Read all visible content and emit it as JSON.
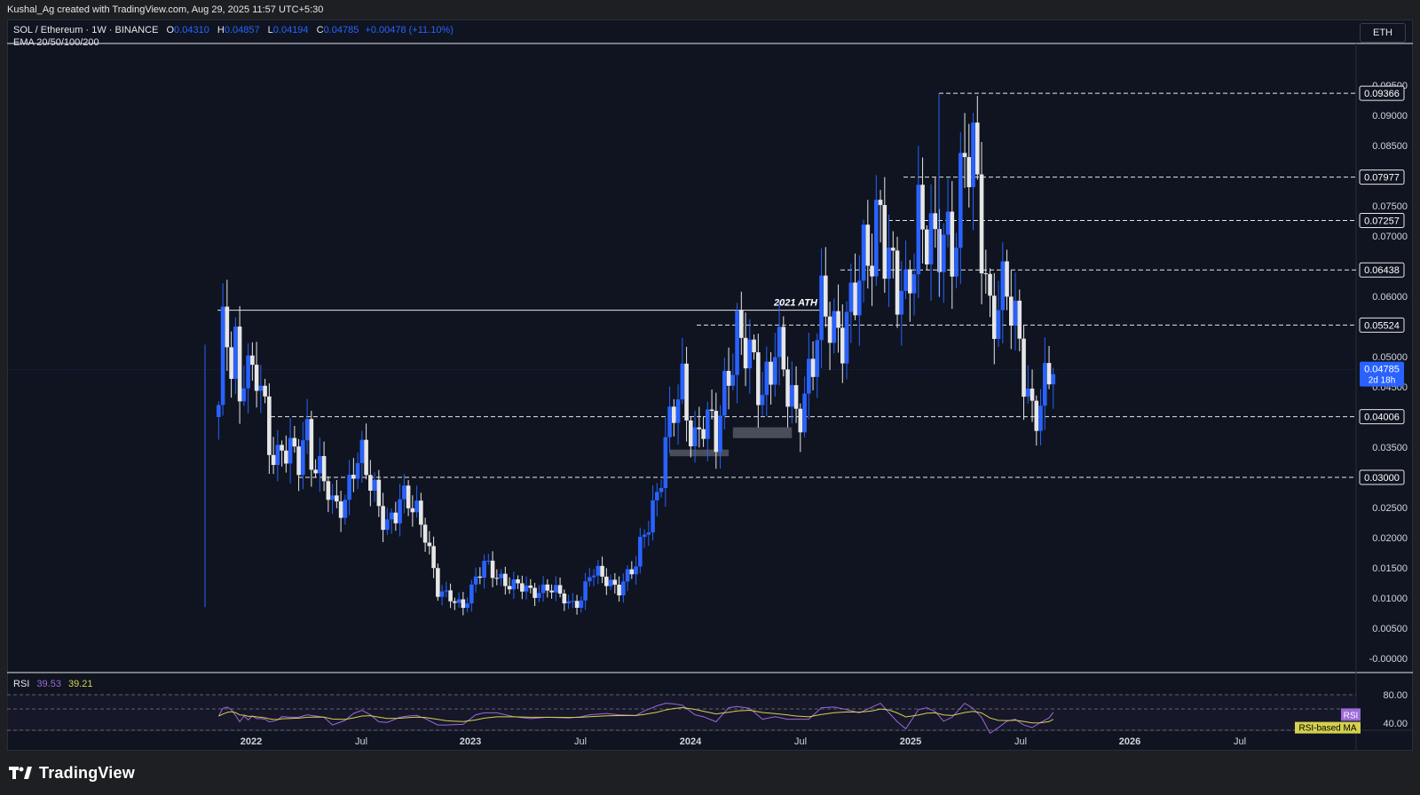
{
  "header": {
    "attribution": "Kushal_Ag created with TradingView.com, Aug 29, 2025 11:57 UTC+5:30"
  },
  "legend": {
    "symbol": "SOL / Ethereum · 1W · BINANCE",
    "open_label": "O",
    "open": "0.04310",
    "high_label": "H",
    "high": "0.04857",
    "low_label": "L",
    "low": "0.04194",
    "close_label": "C",
    "close": "0.04785",
    "change": "+0.00478 (+11.10%)",
    "indicator": "EMA 20/50/100/200"
  },
  "currency_button": "ETH",
  "rsi": {
    "label": "RSI",
    "value": "39.53",
    "ma_value": "39.21",
    "tag_rsi": "RSI",
    "tag_ma": "RSI-based MA",
    "ticks": [
      "80.00",
      "40.00"
    ]
  },
  "footer": {
    "brand": "TradingView"
  },
  "colors": {
    "background": "#0f1420",
    "up": "#2962ff",
    "down": "#e6e6e6",
    "rsi_line": "#9c6ad8",
    "rsi_ma": "#d4d14f"
  },
  "chart_data": {
    "type": "candlestick",
    "title": "SOL / Ethereum · 1W · BINANCE",
    "y_ticks": [
      "0.09500",
      "0.09000",
      "0.08500",
      "0.07500",
      "0.07000",
      "0.06000",
      "0.05000",
      "0.04500",
      "0.03500",
      "0.02500",
      "0.02000",
      "0.01500",
      "0.01000",
      "0.00500",
      "-0.00000"
    ],
    "x_ticks": [
      "2022",
      "Jul",
      "2023",
      "Jul",
      "2024",
      "Jul",
      "2025",
      "Jul",
      "2026",
      "Jul"
    ],
    "ylim": [
      0,
      0.1
    ],
    "levels": [
      {
        "value": 0.09366,
        "label": "0.09366"
      },
      {
        "value": 0.07977,
        "label": "0.07977"
      },
      {
        "value": 0.07257,
        "label": "0.07257"
      },
      {
        "value": 0.06438,
        "label": "0.06438"
      },
      {
        "value": 0.05524,
        "label": "0.05524"
      },
      {
        "value": 0.04006,
        "label": "0.04006"
      },
      {
        "value": 0.03,
        "label": "0.03000"
      }
    ],
    "ath": {
      "value": 0.0577,
      "label": "2021 ATH"
    },
    "last_price": {
      "value": 0.04785,
      "label": "0.04785",
      "countdown": "2d 18h"
    },
    "demand_zones": [
      {
        "date_start": "2023-11-27",
        "date_end": "2024-03-04",
        "low": 0.0335,
        "high": 0.0346
      },
      {
        "date_start": "2024-03-11",
        "date_end": "2024-06-17",
        "low": 0.0365,
        "high": 0.0383
      }
    ],
    "series": [
      {
        "name": "SOL/ETH weekly close",
        "points": [
          [
            "2021-11-08",
            0.04
          ],
          [
            "2021-11-15",
            0.052
          ],
          [
            "2021-11-22",
            0.054
          ],
          [
            "2021-11-29",
            0.05
          ],
          [
            "2021-12-06",
            0.053
          ],
          [
            "2021-12-13",
            0.045
          ],
          [
            "2021-12-20",
            0.05
          ],
          [
            "2021-12-27",
            0.047
          ],
          [
            "2022-01-03",
            0.045
          ],
          [
            "2022-01-10",
            0.046
          ],
          [
            "2022-01-17",
            0.043
          ],
          [
            "2022-01-24",
            0.04
          ],
          [
            "2022-01-31",
            0.037
          ],
          [
            "2022-02-07",
            0.035
          ],
          [
            "2022-02-14",
            0.034
          ],
          [
            "2022-02-21",
            0.036
          ],
          [
            "2022-03-07",
            0.033
          ],
          [
            "2022-03-21",
            0.032
          ],
          [
            "2022-04-04",
            0.038
          ],
          [
            "2022-04-18",
            0.033
          ],
          [
            "2022-05-02",
            0.03
          ],
          [
            "2022-05-16",
            0.024
          ],
          [
            "2022-06-06",
            0.026
          ],
          [
            "2022-06-20",
            0.034
          ],
          [
            "2022-07-04",
            0.033
          ],
          [
            "2022-07-18",
            0.028
          ],
          [
            "2022-08-01",
            0.025
          ],
          [
            "2022-08-15",
            0.023
          ],
          [
            "2022-09-05",
            0.026
          ],
          [
            "2022-09-19",
            0.025
          ],
          [
            "2022-10-03",
            0.024
          ],
          [
            "2022-10-17",
            0.022
          ],
          [
            "2022-11-07",
            0.011
          ],
          [
            "2022-11-21",
            0.01
          ],
          [
            "2022-12-19",
            0.009
          ],
          [
            "2023-01-09",
            0.013
          ],
          [
            "2023-01-23",
            0.015
          ],
          [
            "2023-02-13",
            0.014
          ],
          [
            "2023-03-13",
            0.012
          ],
          [
            "2023-04-10",
            0.011
          ],
          [
            "2023-05-08",
            0.012
          ],
          [
            "2023-06-12",
            0.009
          ],
          [
            "2023-07-03",
            0.01
          ],
          [
            "2023-07-17",
            0.014
          ],
          [
            "2023-08-14",
            0.013
          ],
          [
            "2023-09-04",
            0.012
          ],
          [
            "2023-10-02",
            0.015
          ],
          [
            "2023-10-16",
            0.021
          ],
          [
            "2023-11-06",
            0.028
          ],
          [
            "2023-11-20",
            0.035
          ],
          [
            "2023-12-04",
            0.04
          ],
          [
            "2023-12-18",
            0.045
          ],
          [
            "2024-01-08",
            0.037
          ],
          [
            "2024-01-22",
            0.039
          ],
          [
            "2024-02-12",
            0.036
          ],
          [
            "2024-03-04",
            0.05
          ],
          [
            "2024-03-18",
            0.054
          ],
          [
            "2024-04-08",
            0.048
          ],
          [
            "2024-04-29",
            0.045
          ],
          [
            "2024-05-20",
            0.053
          ],
          [
            "2024-06-10",
            0.043
          ],
          [
            "2024-06-24",
            0.04
          ],
          [
            "2024-07-15",
            0.048
          ],
          [
            "2024-08-05",
            0.056
          ],
          [
            "2024-08-26",
            0.054
          ],
          [
            "2024-09-16",
            0.058
          ],
          [
            "2024-10-07",
            0.061
          ],
          [
            "2024-10-28",
            0.068
          ],
          [
            "2024-11-11",
            0.078
          ],
          [
            "2024-11-25",
            0.066
          ],
          [
            "2024-12-09",
            0.059
          ],
          [
            "2024-12-23",
            0.058
          ],
          [
            "2025-01-13",
            0.076
          ],
          [
            "2025-01-27",
            0.072
          ],
          [
            "2025-02-10",
            0.065
          ],
          [
            "2025-02-24",
            0.068
          ],
          [
            "2025-03-10",
            0.07
          ],
          [
            "2025-03-31",
            0.085
          ],
          [
            "2025-04-14",
            0.08
          ],
          [
            "2025-04-28",
            0.068
          ],
          [
            "2025-05-12",
            0.058
          ],
          [
            "2025-05-26",
            0.062
          ],
          [
            "2025-06-09",
            0.06
          ],
          [
            "2025-06-23",
            0.053
          ],
          [
            "2025-07-07",
            0.048
          ],
          [
            "2025-07-21",
            0.042
          ],
          [
            "2025-08-04",
            0.043
          ],
          [
            "2025-08-18",
            0.045
          ],
          [
            "2025-08-25",
            0.04785
          ]
        ]
      }
    ]
  }
}
